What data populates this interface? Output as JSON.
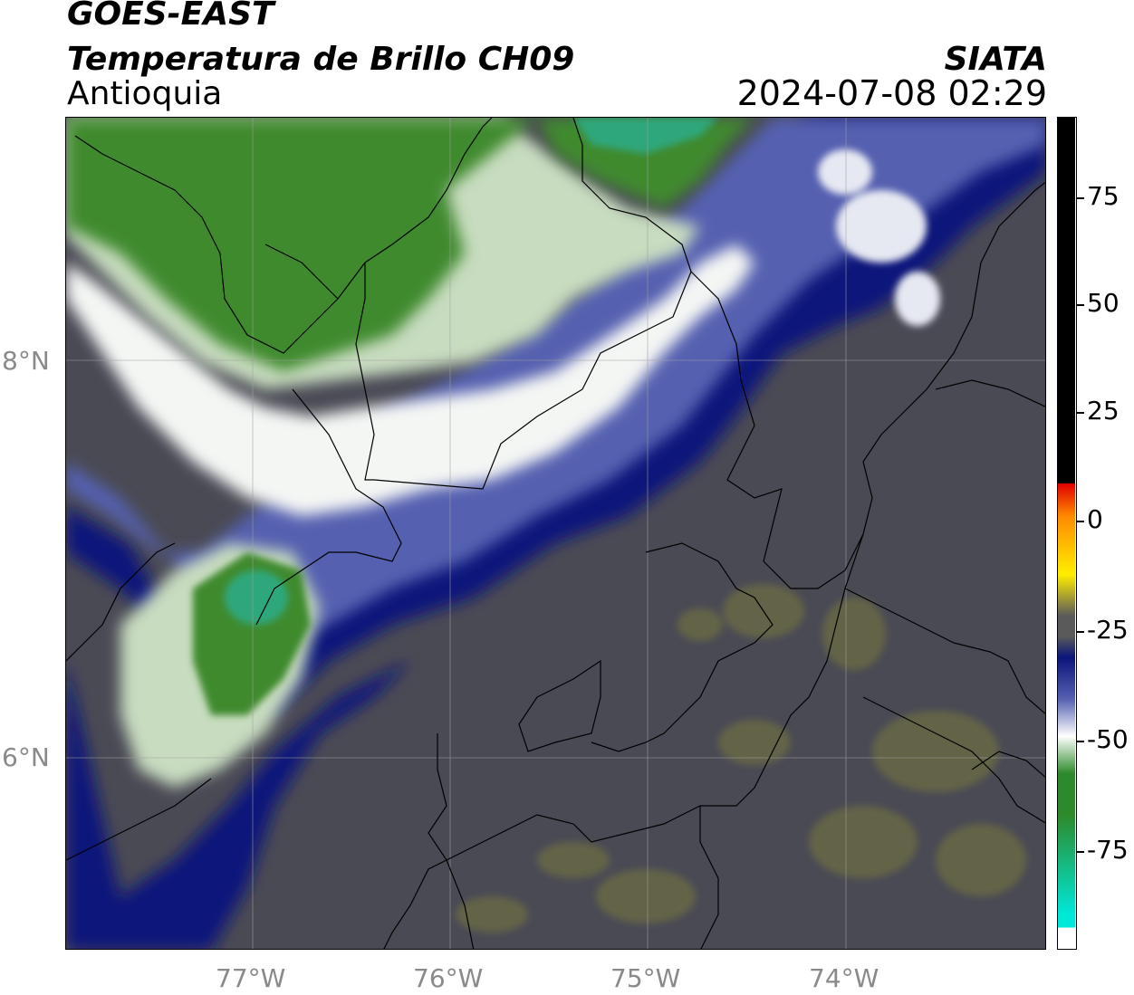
{
  "header": {
    "title_line1": "GOES-EAST",
    "title_line2": "Temperatura de Brillo CH09",
    "region": "Antioquia",
    "brand": "SIATA",
    "timestamp": "2024-07-08 02:29"
  },
  "map": {
    "lat_labels": [
      "8°N",
      "6°N"
    ],
    "lon_labels": [
      "77°W",
      "76°W",
      "75°W",
      "74°W"
    ],
    "colors": {
      "dark_gray": "#4a4a55",
      "olive": "#6b6b45",
      "navy": "#0a157a",
      "mid_blue": "#5560b0",
      "white": "#f4f6f4",
      "light_green": "#c8dcc0",
      "green": "#3f8a2e",
      "teal_green": "#2fa77c"
    }
  },
  "colorbar": {
    "labels": [
      "75",
      "50",
      "25",
      "0",
      "-25",
      "-50",
      "-75"
    ],
    "colors": {
      "black": "#000000",
      "red": "#e00000",
      "orange": "#ff8a00",
      "yellow": "#ffee00",
      "gray": "#5a5a5a",
      "navy": "#0a157a",
      "white": "#ffffff",
      "green": "#2d8a2b",
      "cyan": "#00e8d8"
    }
  }
}
